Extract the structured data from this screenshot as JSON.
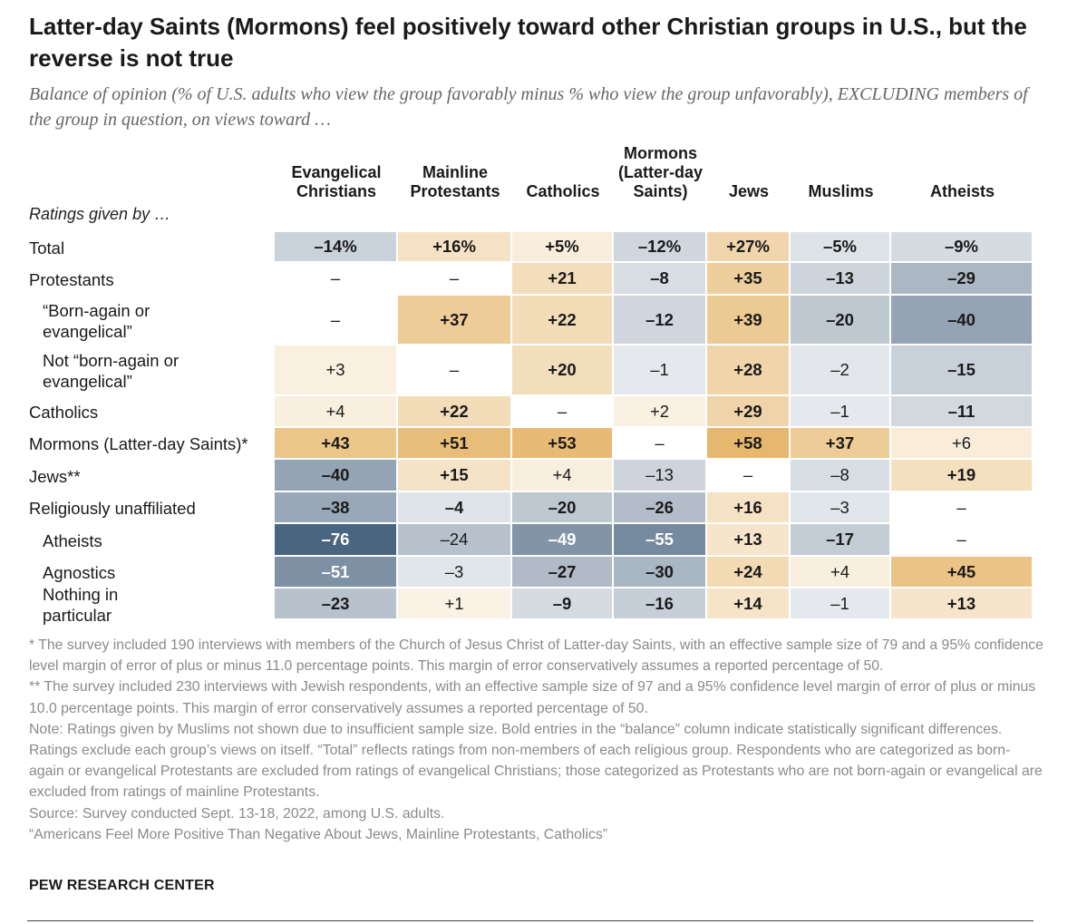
{
  "title": "Latter-day Saints (Mormons) feel positively toward other Christian groups in U.S., but the reverse is not true",
  "subtitle": "Balance of opinion (% of U.S. adults who view the group favorably minus % who view the group unfavorably), EXCLUDING members of the group in question, on views toward …",
  "ratings_by_label": "Ratings given by …",
  "chart_data": {
    "type": "heatmap",
    "columns": [
      "Evangelical Christians",
      "Mainline Protestants",
      "Catholics",
      "Mormons (Latter-day Saints)",
      "Jews",
      "Muslims",
      "Atheists"
    ],
    "rows": [
      {
        "label": "Total",
        "indent": false,
        "values": [
          "–14%",
          "+16%",
          "+5%",
          "–12%",
          "+27%",
          "–5%",
          "–9%"
        ],
        "numeric": [
          -14,
          16,
          5,
          -12,
          27,
          -5,
          -9
        ],
        "bold": [
          true,
          true,
          true,
          true,
          true,
          true,
          true
        ]
      },
      {
        "label": "Protestants",
        "indent": false,
        "values": [
          "–",
          "–",
          "+21",
          "–8",
          "+35",
          "–13",
          "–29"
        ],
        "numeric": [
          null,
          null,
          21,
          -8,
          35,
          -13,
          -29
        ],
        "bold": [
          false,
          false,
          true,
          true,
          true,
          true,
          true
        ]
      },
      {
        "label": "“Born-again or evangelical”",
        "indent": true,
        "values": [
          "–",
          "+37",
          "+22",
          "–12",
          "+39",
          "–20",
          "–40"
        ],
        "numeric": [
          null,
          37,
          22,
          -12,
          39,
          -20,
          -40
        ],
        "bold": [
          false,
          true,
          true,
          true,
          true,
          true,
          true
        ]
      },
      {
        "label": "Not “born-again or evangelical”",
        "indent": true,
        "values": [
          "+3",
          "–",
          "+20",
          "–1",
          "+28",
          "–2",
          "–15"
        ],
        "numeric": [
          3,
          null,
          20,
          -1,
          28,
          -2,
          -15
        ],
        "bold": [
          false,
          false,
          true,
          false,
          true,
          false,
          true
        ]
      },
      {
        "label": "Catholics",
        "indent": false,
        "values": [
          "+4",
          "+22",
          "–",
          "+2",
          "+29",
          "–1",
          "–11"
        ],
        "numeric": [
          4,
          22,
          null,
          2,
          29,
          -1,
          -11
        ],
        "bold": [
          false,
          true,
          false,
          false,
          true,
          false,
          true
        ]
      },
      {
        "label": "Mormons (Latter-day Saints)*",
        "indent": false,
        "values": [
          "+43",
          "+51",
          "+53",
          "–",
          "+58",
          "+37",
          "+6"
        ],
        "numeric": [
          43,
          51,
          53,
          null,
          58,
          37,
          6
        ],
        "bold": [
          true,
          true,
          true,
          false,
          true,
          true,
          false
        ]
      },
      {
        "label": "Jews**",
        "indent": false,
        "values": [
          "–40",
          "+15",
          "+4",
          "–13",
          "–",
          "–8",
          "+19"
        ],
        "numeric": [
          -40,
          15,
          4,
          -13,
          null,
          -8,
          19
        ],
        "bold": [
          true,
          true,
          false,
          false,
          false,
          false,
          true
        ]
      },
      {
        "label": "Religiously unaffiliated",
        "indent": false,
        "values": [
          "–38",
          "–4",
          "–20",
          "–26",
          "+16",
          "–3",
          "–"
        ],
        "numeric": [
          -38,
          -4,
          -20,
          -26,
          16,
          -3,
          null
        ],
        "bold": [
          true,
          true,
          true,
          true,
          true,
          false,
          false
        ]
      },
      {
        "label": "Atheists",
        "indent": true,
        "values": [
          "–76",
          "–24",
          "–49",
          "–55",
          "+13",
          "–17",
          "–"
        ],
        "numeric": [
          -76,
          -24,
          -49,
          -55,
          13,
          -17,
          null
        ],
        "bold": [
          true,
          false,
          true,
          true,
          true,
          true,
          false
        ]
      },
      {
        "label": "Agnostics",
        "indent": true,
        "values": [
          "–51",
          "–3",
          "–27",
          "–30",
          "+24",
          "+4",
          "+45"
        ],
        "numeric": [
          -51,
          -3,
          -27,
          -30,
          24,
          4,
          45
        ],
        "bold": [
          true,
          false,
          true,
          true,
          true,
          false,
          true
        ]
      },
      {
        "label": "Nothing in particular",
        "indent": true,
        "values": [
          "–23",
          "+1",
          "–9",
          "–16",
          "+14",
          "–1",
          "+13"
        ],
        "numeric": [
          -23,
          1,
          -9,
          -16,
          14,
          -1,
          13
        ],
        "bold": [
          true,
          false,
          true,
          true,
          true,
          false,
          true
        ]
      }
    ],
    "colors": {
      "positive": "#e6b86f",
      "negative": "#4a6580",
      "neutral": "#ffffff"
    }
  },
  "notes": [
    "* The survey included 190 interviews with members of the Church of Jesus Christ of Latter-day Saints, with an effective sample size of 79 and a 95% confidence level margin of error of plus or minus 11.0 percentage points. This margin of error conservatively assumes a reported percentage of 50.",
    "** The survey included 230 interviews with Jewish respondents, with an effective sample size of 97 and a 95% confidence level margin of error of plus or minus 10.0 percentage points. This margin of error conservatively assumes a reported percentage of 50.",
    "Note: Ratings given by Muslims not shown due to insufficient sample size. Bold entries in the “balance” column indicate statistically significant differences. Ratings exclude each group’s views on itself. “Total” reflects ratings from non-members of each religious group. Respondents who are categorized as born-again or evangelical Protestants are excluded from ratings of evangelical Christians; those categorized as Protestants who are not born-again or evangelical are excluded from ratings of mainline Protestants.",
    "Source: Survey conducted Sept. 13-18, 2022, among U.S. adults.",
    "“Americans Feel More Positive Than Negative About Jews, Mainline Protestants, Catholics”"
  ],
  "brand": "PEW RESEARCH CENTER"
}
